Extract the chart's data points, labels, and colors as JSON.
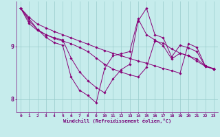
{
  "title": "",
  "xlabel": "Windchill (Refroidissement éolien,°C)",
  "ylabel": "",
  "background_color": "#c6ecec",
  "line_color": "#880077",
  "grid_color": "#99cccc",
  "text_color": "#770077",
  "xlim": [
    -0.5,
    23.5
  ],
  "ylim": [
    7.75,
    9.85
  ],
  "yticks": [
    8,
    9
  ],
  "xticks": [
    0,
    1,
    2,
    3,
    4,
    5,
    6,
    7,
    8,
    9,
    10,
    11,
    12,
    13,
    14,
    15,
    16,
    17,
    18,
    19,
    20,
    21,
    22,
    23
  ],
  "series": [
    [
      9.72,
      9.55,
      9.42,
      9.35,
      9.28,
      9.22,
      9.16,
      9.1,
      9.04,
      8.98,
      8.92,
      8.87,
      8.82,
      8.77,
      8.72,
      8.68,
      8.63,
      8.58,
      8.54,
      8.49,
      9.05,
      8.98,
      8.63,
      8.58
    ],
    [
      9.72,
      9.48,
      9.32,
      9.22,
      9.15,
      9.1,
      9.05,
      8.98,
      8.9,
      8.78,
      8.66,
      8.57,
      8.51,
      8.46,
      8.42,
      8.6,
      9.1,
      9.06,
      8.95,
      8.87,
      8.82,
      8.76,
      8.63,
      8.57
    ],
    [
      9.72,
      9.43,
      9.3,
      9.22,
      9.16,
      9.12,
      8.78,
      8.52,
      8.35,
      8.22,
      8.12,
      8.38,
      8.56,
      8.66,
      9.48,
      9.72,
      9.22,
      9.16,
      8.8,
      9.02,
      8.97,
      8.9,
      8.62,
      8.57
    ],
    [
      9.72,
      9.52,
      9.32,
      9.17,
      9.07,
      9.02,
      8.42,
      8.17,
      8.07,
      7.93,
      8.58,
      8.82,
      8.86,
      8.9,
      9.52,
      9.22,
      9.12,
      9.01,
      8.76,
      8.87,
      8.82,
      8.72,
      8.62,
      8.57
    ]
  ]
}
